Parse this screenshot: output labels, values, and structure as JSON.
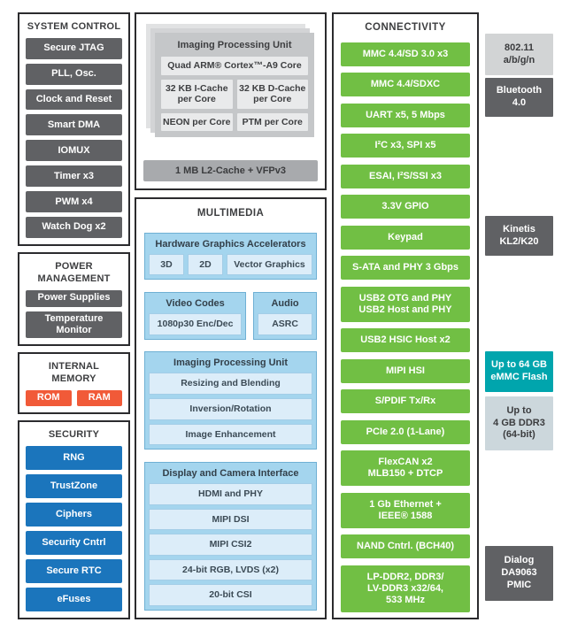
{
  "colors": {
    "node_gray": "#606164",
    "node_blue": "#1b75bc",
    "node_orange": "#f15a38",
    "node_green": "#71bf44",
    "multimedia_blue": "#a4d5ee",
    "multimedia_item_blue": "#dcedf9",
    "external_teal": "#00a5ad",
    "external_light_gray": "#d2d4d5",
    "external_blue_gray": "#ccd7dc",
    "cpu_card_gray": "#c5c7c9",
    "l2_bar_gray": "#a8aaad",
    "panel_border": "#2b2b2e"
  },
  "system_control": {
    "title": "SYSTEM CONTROL",
    "items": [
      "Secure JTAG",
      "PLL, Osc.",
      "Clock and Reset",
      "Smart DMA",
      "IOMUX",
      "Timer x3",
      "PWM x4",
      "Watch Dog x2"
    ]
  },
  "power_management": {
    "title": "POWER MANAGEMENT",
    "items": [
      "Power Supplies",
      "Temperature Monitor"
    ]
  },
  "internal_memory": {
    "title": "INTERNAL MEMORY",
    "items": [
      "ROM",
      "RAM"
    ]
  },
  "security": {
    "title": "SECURITY",
    "items": [
      "RNG",
      "TrustZone",
      "Ciphers",
      "Security Cntrl",
      "Secure RTC",
      "eFuses"
    ]
  },
  "cpu": {
    "title": "Imaging Processing Unit",
    "core": "Quad ARM® Cortex™-A9 Core",
    "caches": [
      "32 KB I-Cache\nper Core",
      "32 KB D-Cache\nper Core"
    ],
    "per_core": [
      "NEON per Core",
      "PTM per Core"
    ],
    "l2": "1 MB L2-Cache + VFPv3"
  },
  "multimedia": {
    "title": "MULTIMEDIA",
    "gpu": {
      "title": "Hardware Graphics Accelerators",
      "items": [
        "3D",
        "2D",
        "Vector Graphics"
      ]
    },
    "video": {
      "title": "Video Codes",
      "item": "1080p30 Enc/Dec"
    },
    "audio": {
      "title": "Audio",
      "item": "ASRC"
    },
    "ipu": {
      "title": "Imaging Processing Unit",
      "items": [
        "Resizing and Blending",
        "Inversion/Rotation",
        "Image Enhancement"
      ]
    },
    "display": {
      "title": "Display and Camera Interface",
      "items": [
        "HDMI and PHY",
        "MIPI DSI",
        "MIPI CSI2",
        "24-bit RGB, LVDS (x2)",
        "20-bit CSI"
      ]
    }
  },
  "connectivity": {
    "title": "CONNECTIVITY",
    "items": [
      "MMC 4.4/SD 3.0 x3",
      "MMC 4.4/SDXC",
      "UART x5, 5 Mbps",
      "I²C x3, SPI x5",
      "ESAI, I²S/SSI x3",
      "3.3V GPIO",
      "Keypad",
      "S-ATA and PHY 3 Gbps",
      "USB2 OTG and PHY\nUSB2 Host and PHY",
      "USB2 HSIC Host x2",
      "MIPI HSI",
      "S/PDIF Tx/Rx",
      "PCIe 2.0 (1-Lane)",
      "FlexCAN x2\nMLB150 + DTCP",
      "1 Gb Ethernet +\nIEEE® 1588",
      "NAND Cntrl. (BCH40)",
      "LP-DDR2, DDR3/\nLV-DDR3 x32/64,\n533 MHz"
    ]
  },
  "external": {
    "wifi": "802.11\na/b/g/n",
    "bluetooth": "Bluetooth\n4.0",
    "kinetis": "Kinetis\nKL2/K20",
    "emmc": "Up to 64 GB\neMMC Flash",
    "ddr3": "Up to\n4 GB DDR3\n(64-bit)",
    "pmic": "Dialog\nDA9063\nPMIC"
  }
}
